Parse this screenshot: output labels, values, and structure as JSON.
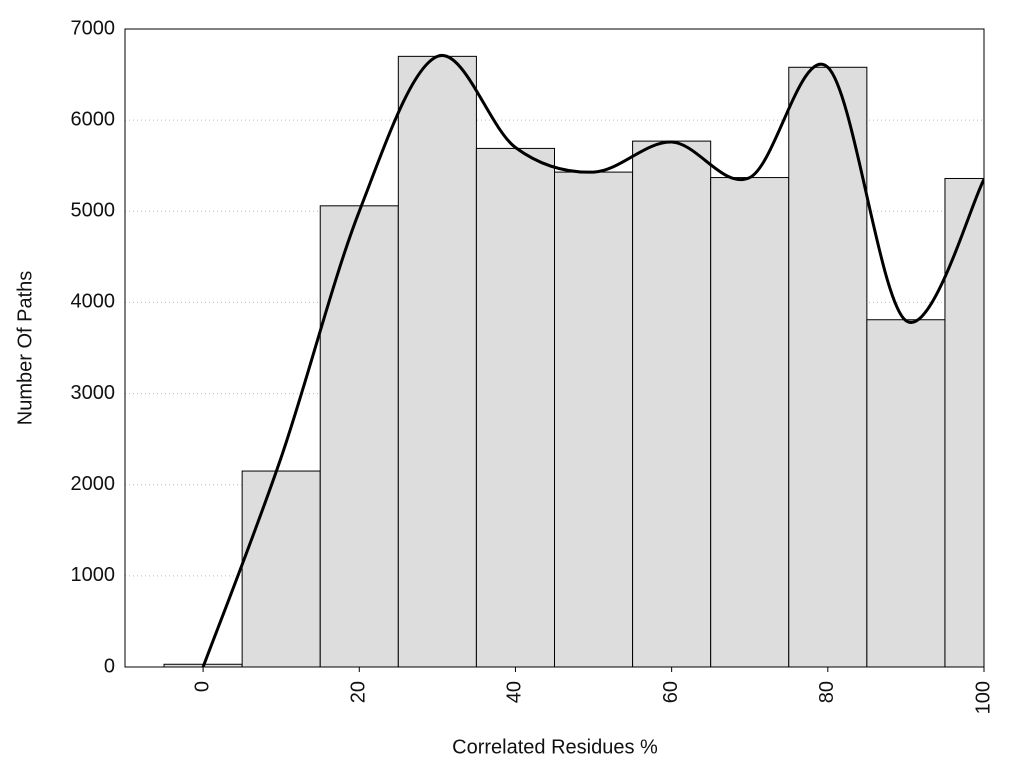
{
  "chart_data": {
    "type": "histogram",
    "xlabel": "Correlated Residues %",
    "ylabel": "Number Of Paths",
    "bins": [
      -5,
      5,
      15,
      25,
      35,
      45,
      55,
      65,
      75,
      85,
      95,
      105
    ],
    "values": [
      30,
      2150,
      5060,
      6700,
      5690,
      5430,
      5770,
      5370,
      6580,
      3810,
      5360
    ],
    "color": "#dddddd",
    "curve": {
      "x": [
        0,
        10,
        20,
        30,
        40,
        50,
        60,
        70,
        80,
        90,
        100
      ],
      "values": [
        0,
        2300,
        5000,
        6700,
        5700,
        5430,
        5760,
        5370,
        6580,
        3800,
        5350
      ],
      "color": "#000000"
    },
    "xlim": [
      -10,
      100
    ],
    "xticks": [
      0,
      20,
      40,
      60,
      80,
      100
    ],
    "ylim": [
      0,
      7000
    ],
    "yticks": [
      0,
      1000,
      2000,
      3000,
      4000,
      5000,
      6000,
      7000
    ],
    "grid": true
  }
}
